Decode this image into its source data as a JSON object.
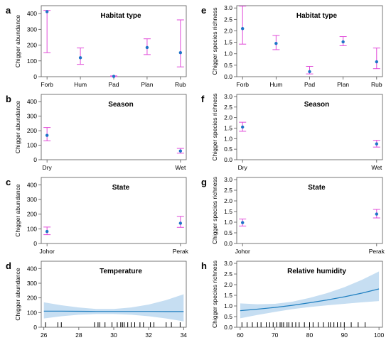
{
  "colors": {
    "point": "#1e73c8",
    "errorbar": "#e04ad8",
    "line": "#1f7fc0",
    "band": "#c6def2",
    "rug": "#000000"
  },
  "chart_data": [
    {
      "letter": "a",
      "type": "point-errorbar",
      "title": "Habitat type",
      "ylabel": "Chigger abundance",
      "categories": [
        "Forb",
        "Hum",
        "Pad",
        "Plan",
        "Rub"
      ],
      "values": [
        412,
        120,
        2,
        185,
        152
      ],
      "lower": [
        152,
        78,
        0,
        140,
        62
      ],
      "upper": [
        420,
        182,
        5,
        240,
        360
      ],
      "ylim": [
        0,
        450
      ],
      "yticks": [
        0,
        100,
        200,
        300,
        400
      ]
    },
    {
      "letter": "e",
      "type": "point-errorbar",
      "title": "Habitat type",
      "ylabel": "Chigger species richness",
      "categories": [
        "Forb",
        "Hum",
        "Pad",
        "Plan",
        "Rub"
      ],
      "values": [
        2.1,
        1.45,
        0.22,
        1.52,
        0.65
      ],
      "lower": [
        1.42,
        1.18,
        0.12,
        1.35,
        0.35
      ],
      "upper": [
        3.08,
        1.8,
        0.45,
        1.75,
        1.25
      ],
      "ylim": [
        0,
        3.1
      ],
      "yticks": [
        "0.0",
        "0.5",
        "1.0",
        "1.5",
        "2.0",
        "2.5",
        "3.0"
      ]
    },
    {
      "letter": "b",
      "type": "point-errorbar",
      "title": "Season",
      "ylabel": "Chigger abundance",
      "categories": [
        "Dry",
        "Wet"
      ],
      "values": [
        168,
        60
      ],
      "lower": [
        130,
        45
      ],
      "upper": [
        222,
        78
      ],
      "ylim": [
        0,
        450
      ],
      "yticks": [
        0,
        100,
        200,
        300,
        400
      ]
    },
    {
      "letter": "f",
      "type": "point-errorbar",
      "title": "Season",
      "ylabel": "Chigger species richness",
      "categories": [
        "Dry",
        "Wet"
      ],
      "values": [
        1.55,
        0.75
      ],
      "lower": [
        1.35,
        0.6
      ],
      "upper": [
        1.78,
        0.92
      ],
      "ylim": [
        0,
        3.1
      ],
      "yticks": [
        "0.0",
        "0.5",
        "1.0",
        "1.5",
        "2.0",
        "2.5",
        "3.0"
      ]
    },
    {
      "letter": "c",
      "type": "point-errorbar",
      "title": "State",
      "ylabel": "Chigger abundance",
      "categories": [
        "Johor",
        "Perak"
      ],
      "values": [
        82,
        138
      ],
      "lower": [
        60,
        110
      ],
      "upper": [
        112,
        185
      ],
      "ylim": [
        0,
        450
      ],
      "yticks": [
        0,
        100,
        200,
        300,
        400
      ]
    },
    {
      "letter": "g",
      "type": "point-errorbar",
      "title": "State",
      "ylabel": "Chigger species richness",
      "categories": [
        "Johor",
        "Perak"
      ],
      "values": [
        0.98,
        1.38
      ],
      "lower": [
        0.82,
        1.2
      ],
      "upper": [
        1.15,
        1.6
      ],
      "ylim": [
        0,
        3.1
      ],
      "yticks": [
        "0.0",
        "0.5",
        "1.0",
        "1.5",
        "2.0",
        "2.5",
        "3.0"
      ]
    },
    {
      "letter": "d",
      "type": "line-ribbon",
      "title": "Temperature",
      "ylabel": "Chigger abundance",
      "x": [
        26,
        27,
        28,
        29,
        30,
        31,
        32,
        33,
        34
      ],
      "y": [
        110,
        110,
        109,
        108,
        108,
        108,
        108,
        107,
        107
      ],
      "lower": [
        60,
        75,
        85,
        90,
        90,
        85,
        75,
        60,
        40
      ],
      "upper": [
        170,
        150,
        135,
        125,
        125,
        135,
        155,
        185,
        225
      ],
      "rug": [
        26.1,
        26.8,
        27.0,
        28.9,
        29.1,
        29.2,
        29.5,
        29.9,
        30.2,
        30.4,
        30.5,
        30.6,
        30.8,
        31.0,
        31.2,
        31.5,
        31.7,
        32.1,
        32.3,
        33.0,
        33.3,
        33.8
      ],
      "xlim": [
        25.85,
        34.15
      ],
      "xticks": [
        26,
        28,
        30,
        32,
        34
      ],
      "ylim": [
        0,
        450
      ],
      "yticks": [
        0,
        100,
        200,
        300,
        400
      ]
    },
    {
      "letter": "h",
      "type": "line-ribbon",
      "title": "Relative humidity",
      "ylabel": "Chigger species richness",
      "x": [
        60,
        65,
        70,
        75,
        80,
        85,
        90,
        95,
        100
      ],
      "y": [
        0.78,
        0.85,
        0.93,
        1.03,
        1.15,
        1.28,
        1.43,
        1.6,
        1.8
      ],
      "lower": [
        0.42,
        0.58,
        0.72,
        0.85,
        0.95,
        1.03,
        1.1,
        1.17,
        1.23
      ],
      "upper": [
        1.12,
        1.08,
        1.1,
        1.2,
        1.38,
        1.6,
        1.88,
        2.22,
        2.62
      ],
      "rug": [
        60.5,
        62.0,
        63.5,
        65.0,
        66.0,
        67.5,
        68.5,
        69.5,
        70.5,
        71.5,
        72.0,
        72.5,
        73.5,
        74.0,
        75.0,
        76.0,
        77.0,
        78.5,
        80.0,
        81.0,
        82.5,
        84.0,
        85.5,
        86.0,
        87.0,
        88.0,
        89.0,
        90.0,
        92.0,
        94.0,
        96.0
      ],
      "xlim": [
        59,
        101
      ],
      "xticks": [
        60,
        70,
        80,
        90,
        100
      ],
      "ylim": [
        0,
        3.1
      ],
      "yticks": [
        "0.0",
        "0.5",
        "1.0",
        "1.5",
        "2.0",
        "2.5",
        "3.0"
      ]
    }
  ]
}
